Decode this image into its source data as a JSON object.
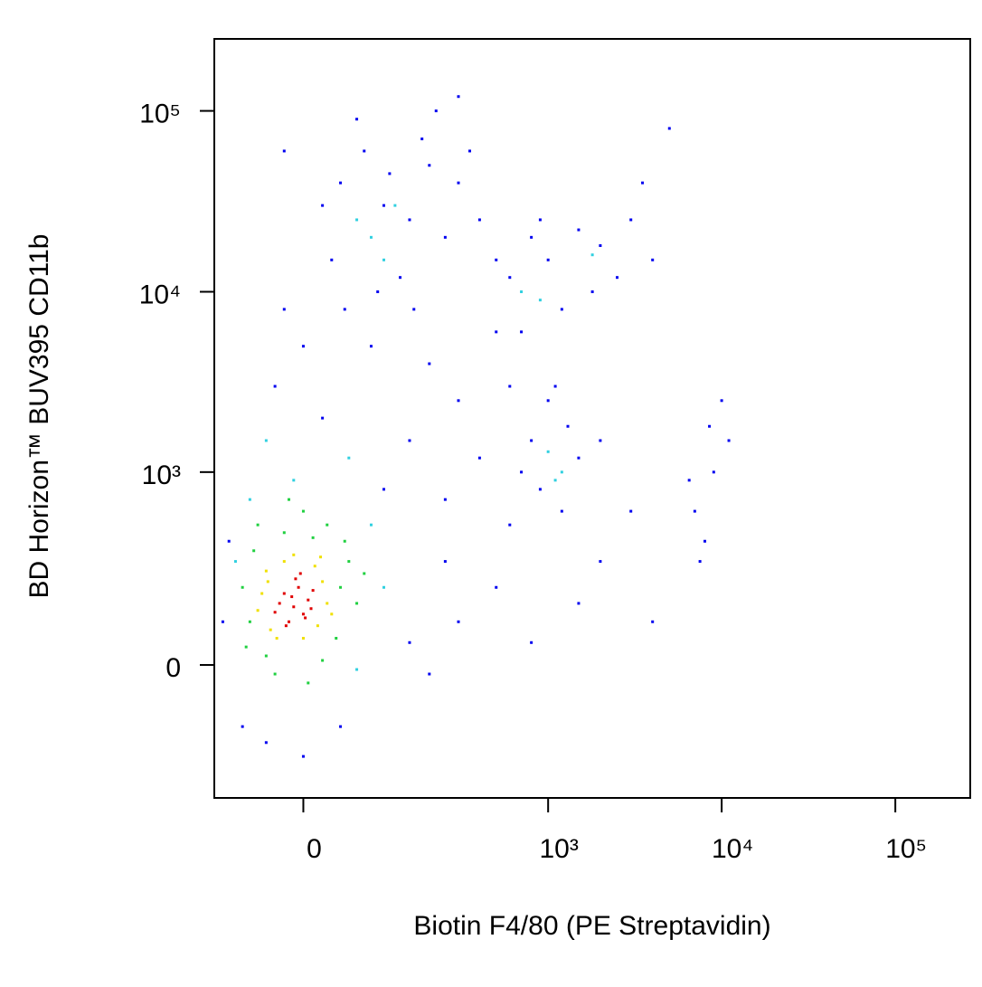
{
  "chart_data": {
    "type": "scatter",
    "xlabel": "Biotin F4/80 (PE Streptavidin)",
    "ylabel": "BD Horizon™ BUV395 CD11b",
    "xscale": "biexponential",
    "yscale": "biexponential",
    "xlim": [
      -115,
      270000
    ],
    "ylim": [
      -454,
      250000
    ],
    "xticks": [
      0,
      {
        "value": 1000,
        "label": "10³"
      },
      {
        "value": 10000,
        "label": "10⁴"
      },
      {
        "value": 100000,
        "label": "10⁵"
      }
    ],
    "yticks": [
      0,
      {
        "value": 1000,
        "label": "10³"
      },
      {
        "value": 10000,
        "label": "10⁴"
      },
      {
        "value": 100000,
        "label": "10⁵"
      }
    ],
    "series": [
      {
        "color": "#0000f0",
        "x": [
          40,
          70,
          100,
          150,
          200,
          250,
          30,
          90,
          130,
          180,
          300,
          60,
          20,
          400,
          110,
          220,
          350,
          45,
          160,
          80,
          0,
          -30,
          20,
          -20,
          200,
          300,
          500,
          150,
          400,
          100,
          250,
          600,
          600,
          800,
          1000,
          1500,
          2000,
          2500,
          1200,
          700,
          3000,
          1800,
          900,
          4000,
          500,
          800,
          1000,
          1300,
          900,
          1200,
          1500,
          700,
          1100,
          2000,
          600,
          7000,
          9000,
          8000,
          11000,
          6500,
          10000,
          8500,
          7500,
          2000,
          3000,
          4000,
          1500,
          500,
          800,
          300,
          200,
          -100,
          -90,
          -70,
          -40,
          0,
          40,
          150,
          250,
          5000,
          3500,
          300,
          -20
        ],
        "y": [
          40000,
          60000,
          30000,
          25000,
          50000,
          20000,
          15000,
          10000,
          12000,
          70000,
          40000,
          90000,
          30000,
          25000,
          45000,
          100000,
          60000,
          8000,
          8000,
          5000,
          5000,
          3000,
          2000,
          8000,
          4000,
          2500,
          6000,
          1500,
          1200,
          800,
          700,
          3000,
          12000,
          20000,
          15000,
          22000,
          18000,
          12000,
          8000,
          6000,
          25000,
          10000,
          25000,
          15000,
          15000,
          1500,
          2500,
          1800,
          800,
          600,
          1200,
          1000,
          3000,
          1500,
          500,
          600,
          1000,
          400,
          1500,
          900,
          2500,
          1800,
          300,
          300,
          600,
          100,
          150,
          200,
          50,
          100,
          -20,
          100,
          400,
          -150,
          -200,
          -250,
          -150,
          50,
          300,
          80000,
          40000,
          120000,
          60000
        ]
      },
      {
        "color": "#30d0e0",
        "x": [
          -80,
          80,
          -10,
          100,
          60,
          -60,
          80,
          100,
          60,
          1000,
          1200,
          900,
          1800,
          120,
          -40,
          1100,
          700,
          50
        ],
        "y": [
          300,
          500,
          900,
          200,
          -10,
          700,
          20000,
          15000,
          25000,
          1300,
          1000,
          9000,
          16000,
          30000,
          1500,
          900,
          10000,
          1200
        ]
      },
      {
        "color": "#20d040",
        "x": [
          -60,
          40,
          -55,
          35,
          -20,
          10,
          -65,
          50,
          -40,
          25,
          -70,
          0,
          60,
          -30,
          45,
          -50,
          20,
          70,
          -15,
          5
        ],
        "y": [
          100,
          200,
          350,
          60,
          450,
          420,
          40,
          300,
          20,
          500,
          200,
          600,
          150,
          -20,
          400,
          500,
          10,
          250,
          700,
          -40
        ]
      },
      {
        "color": "#f0e000",
        "x": [
          -35,
          20,
          -40,
          15,
          -20,
          25,
          -45,
          -28,
          12,
          30,
          -10,
          -50,
          0,
          18,
          -38
        ],
        "y": [
          80,
          220,
          260,
          90,
          300,
          150,
          180,
          60,
          280,
          120,
          330,
          130,
          60,
          320,
          220
        ]
      },
      {
        "color": "#e00000",
        "x": [
          -10,
          -20,
          0,
          -5,
          -15,
          5,
          -25,
          10,
          -8,
          -18,
          2,
          -12,
          8,
          -30,
          -3
        ],
        "y": [
          140,
          180,
          120,
          200,
          100,
          160,
          150,
          190,
          230,
          90,
          110,
          170,
          135,
          125,
          250
        ]
      }
    ]
  }
}
